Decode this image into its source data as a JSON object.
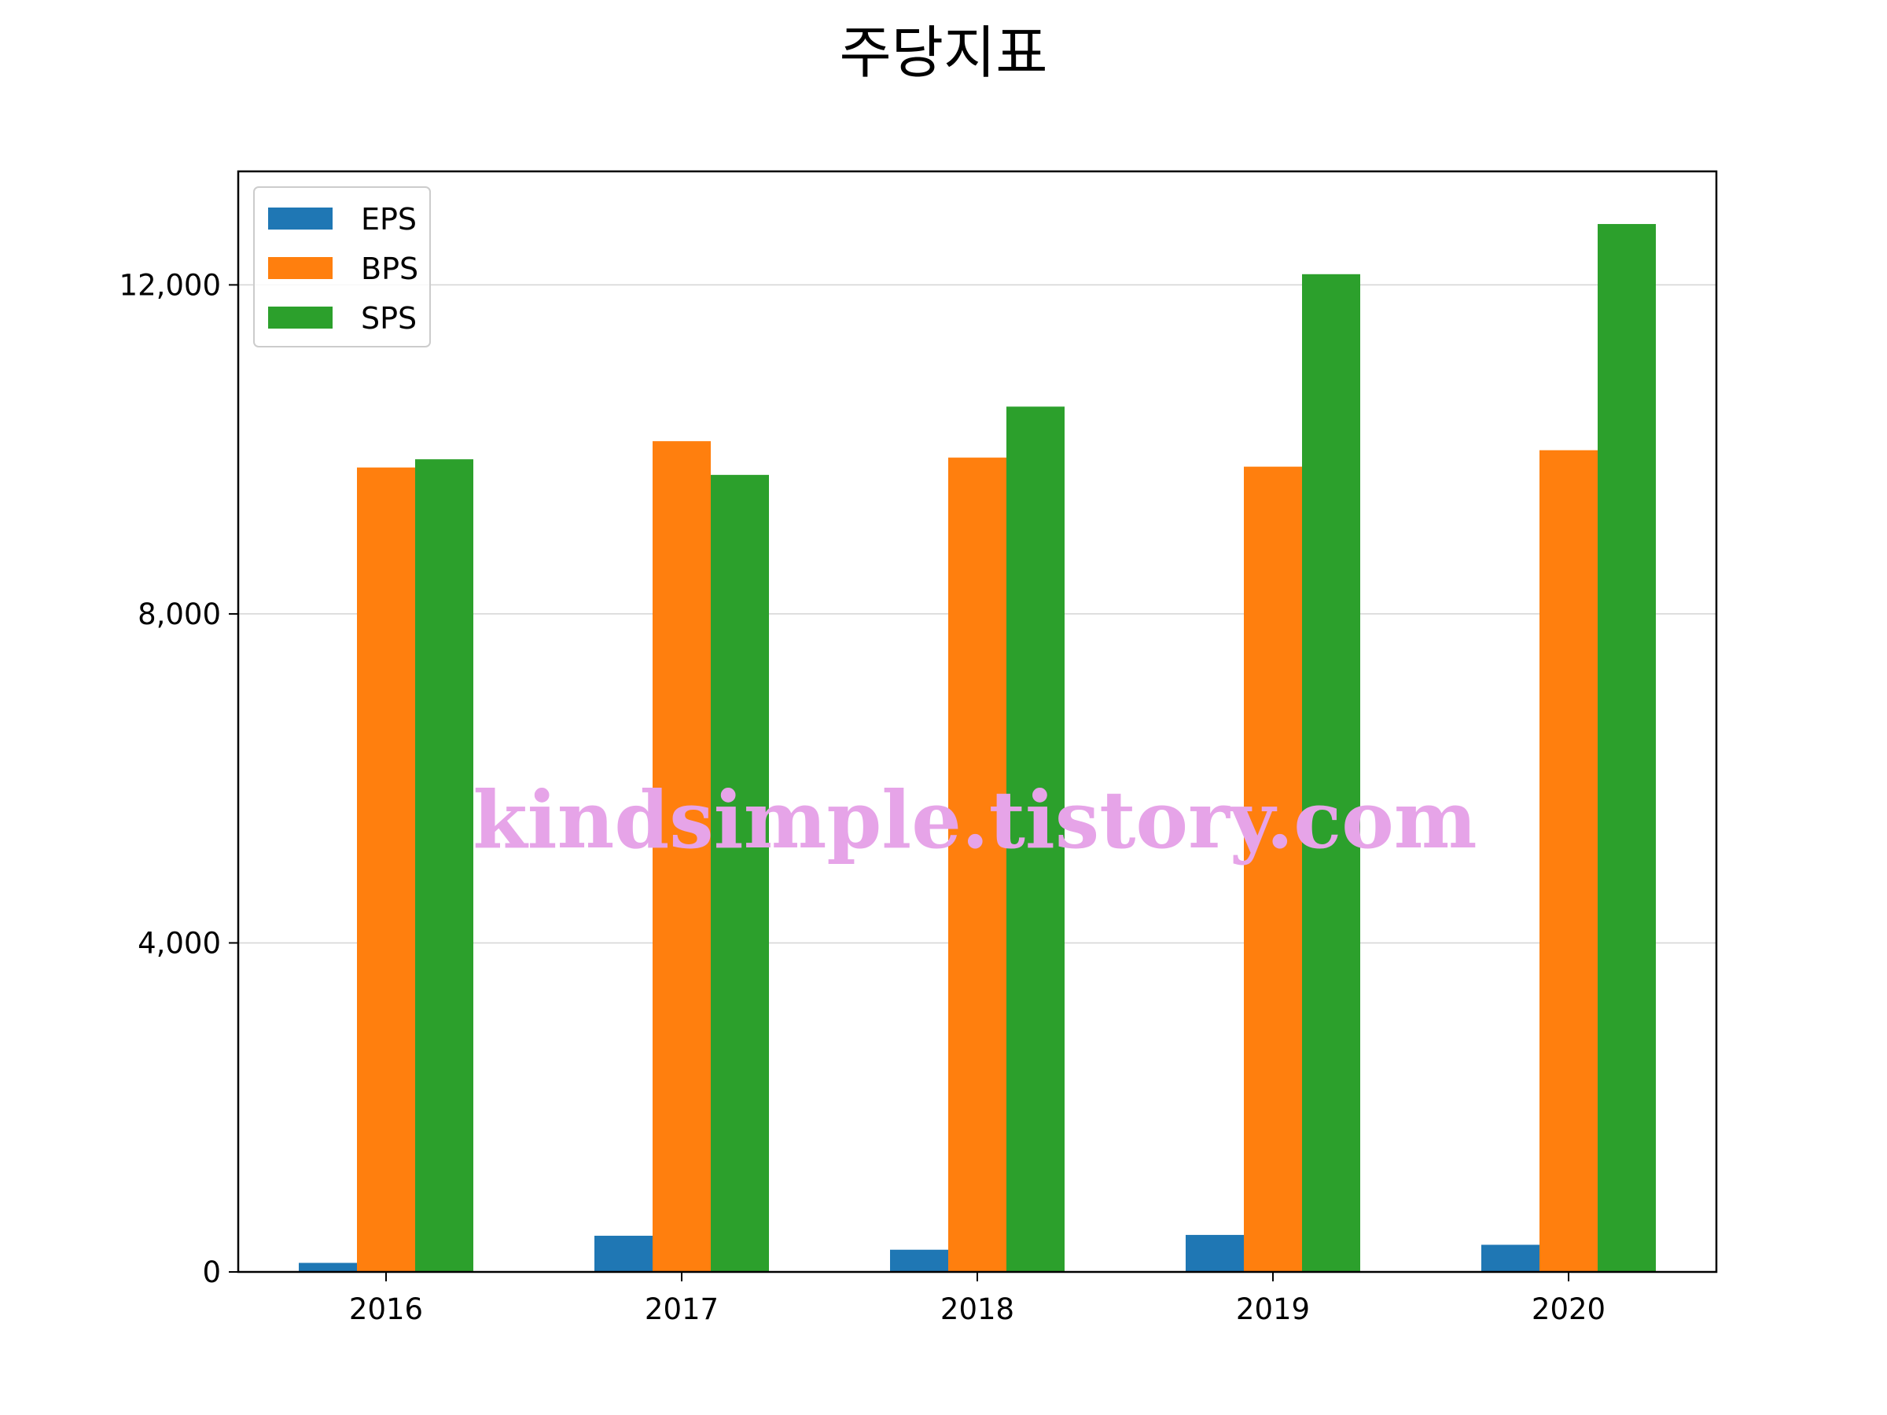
{
  "chart_data": {
    "type": "bar",
    "title": "주당지표",
    "xlabel": "",
    "ylabel": "",
    "categories": [
      "2016",
      "2017",
      "2018",
      "2019",
      "2020"
    ],
    "series": [
      {
        "name": "EPS",
        "color": "#1f77b4",
        "values": [
          110,
          440,
          270,
          450,
          330
        ]
      },
      {
        "name": "BPS",
        "color": "#ff7f0e",
        "values": [
          9780,
          10100,
          9900,
          9790,
          9990
        ]
      },
      {
        "name": "SPS",
        "color": "#2ca02c",
        "values": [
          9880,
          9690,
          10520,
          12130,
          12740
        ]
      }
    ],
    "ylim": [
      0,
      13380
    ],
    "yticks": [
      0,
      4000,
      8000,
      12000
    ],
    "ytick_labels": [
      "0",
      "4,000",
      "8,000",
      "12,000"
    ],
    "grid": "horizontal",
    "legend": "top-left",
    "watermark": "kindsimple.tistory.com"
  }
}
